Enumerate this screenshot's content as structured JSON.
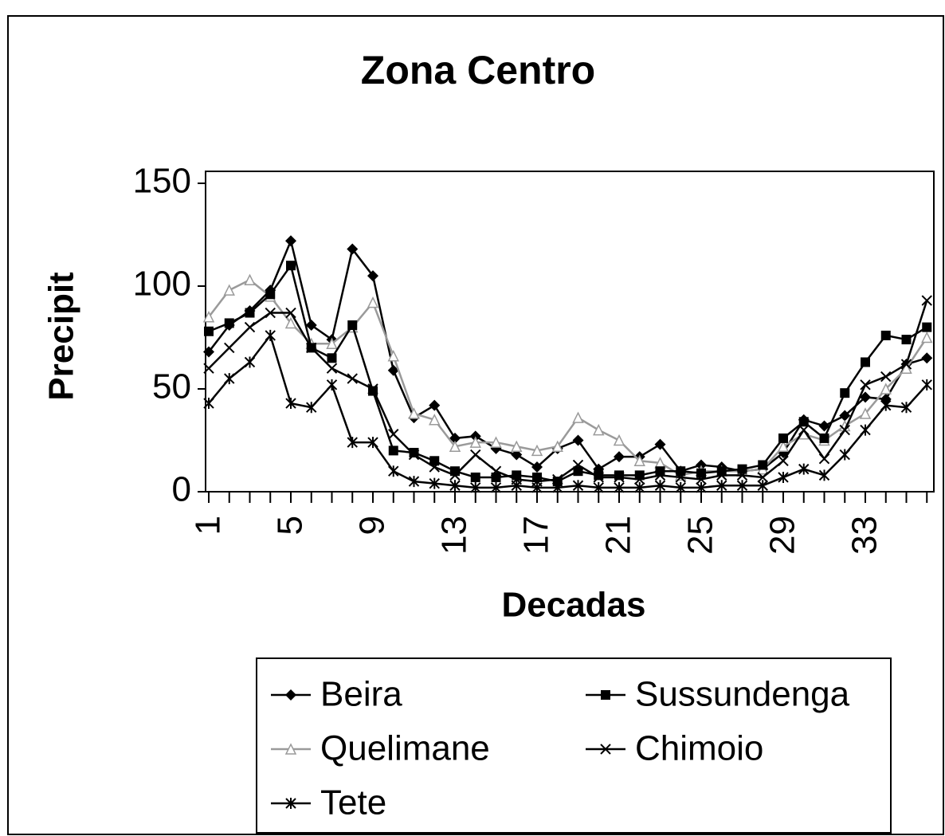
{
  "chart_data": {
    "type": "line",
    "title": "Zona Centro",
    "x_label": "Decadas",
    "y_label": "Precipit",
    "categories": [
      "1",
      null,
      null,
      null,
      "5",
      null,
      null,
      null,
      "9",
      null,
      null,
      null,
      "13",
      null,
      null,
      null,
      "17",
      null,
      null,
      null,
      "21",
      null,
      null,
      null,
      "25",
      null,
      null,
      null,
      "29",
      null,
      null,
      null,
      "33",
      null,
      null,
      null
    ],
    "ylim": [
      0,
      150
    ],
    "yticks": [
      0,
      50,
      100,
      150
    ],
    "series": [
      {
        "name": "Beira",
        "color": "#000000",
        "marker": "diamond",
        "values": [
          68,
          81,
          88,
          98,
          122,
          81,
          74,
          118,
          105,
          59,
          36,
          42,
          26,
          27,
          21,
          18,
          12,
          21,
          25,
          11,
          17,
          17,
          23,
          10,
          13,
          12,
          10,
          11,
          19,
          35,
          32,
          37,
          46,
          45,
          62,
          65
        ]
      },
      {
        "name": "Quelimane",
        "color": "#9a9a9a",
        "marker": "triangle",
        "values": [
          85,
          98,
          103,
          95,
          82,
          72,
          72,
          80,
          92,
          66,
          38,
          35,
          22,
          24,
          24,
          22,
          20,
          22,
          36,
          30,
          25,
          15,
          14,
          8,
          10,
          10,
          10,
          11,
          22,
          28,
          25,
          32,
          38,
          50,
          60,
          75
        ]
      },
      {
        "name": "Tete",
        "color": "#000000",
        "marker": "star",
        "values": [
          43,
          55,
          63,
          76,
          43,
          41,
          52,
          24,
          24,
          10,
          5,
          4,
          3,
          2,
          2,
          3,
          2,
          2,
          3,
          2,
          2,
          2,
          3,
          2,
          2,
          3,
          3,
          3,
          7,
          11,
          8,
          18,
          30,
          42,
          41,
          52
        ]
      },
      {
        "name": "Sussundenga",
        "color": "#000000",
        "marker": "square",
        "values": [
          78,
          82,
          87,
          96,
          110,
          70,
          65,
          81,
          49,
          20,
          19,
          15,
          10,
          7,
          7,
          8,
          7,
          5,
          10,
          8,
          8,
          8,
          10,
          10,
          9,
          10,
          11,
          13,
          26,
          34,
          26,
          48,
          63,
          76,
          74,
          80
        ]
      },
      {
        "name": "Chimoio",
        "color": "#000000",
        "marker": "x",
        "values": [
          60,
          70,
          80,
          87,
          87,
          70,
          60,
          55,
          50,
          28,
          18,
          12,
          8,
          18,
          10,
          6,
          5,
          6,
          13,
          7,
          7,
          6,
          8,
          7,
          6,
          8,
          8,
          7,
          15,
          30,
          16,
          30,
          52,
          56,
          62,
          93
        ]
      }
    ]
  }
}
